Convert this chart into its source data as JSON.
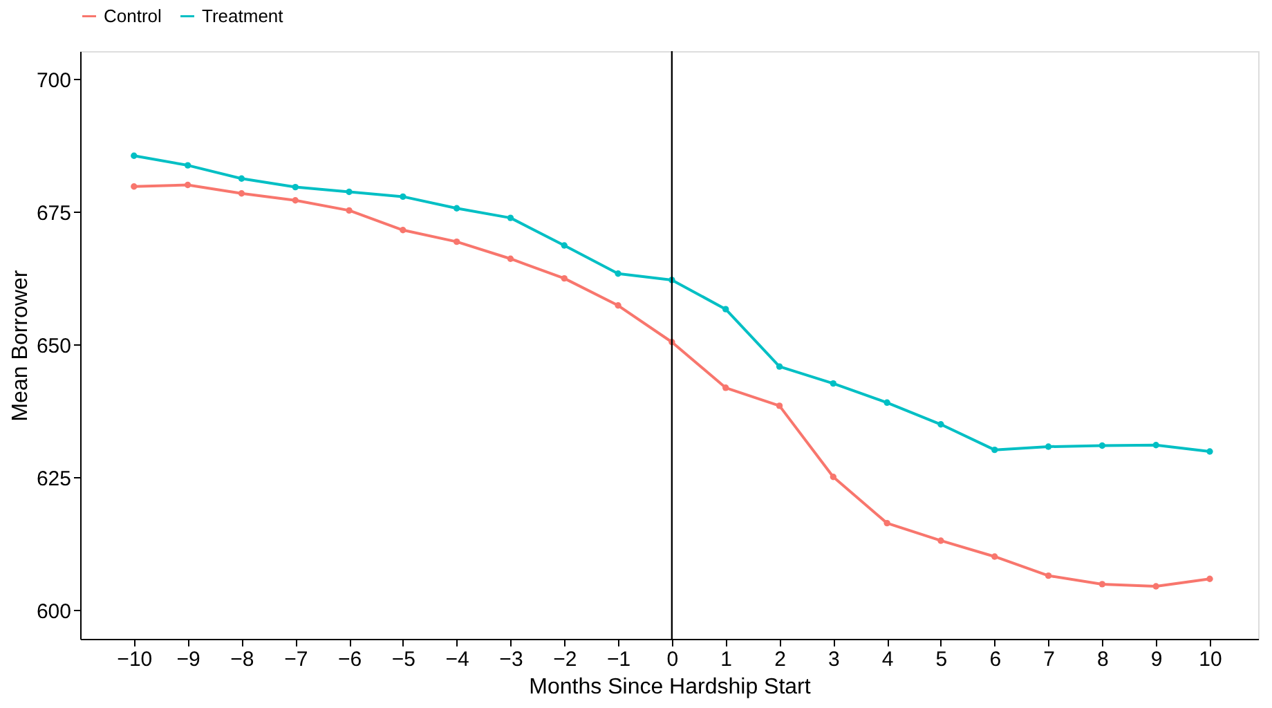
{
  "chart_data": {
    "type": "line",
    "xlabel": "Months Since Hardship Start",
    "ylabel": "Mean Borrower",
    "x": [
      -10,
      -9,
      -8,
      -7,
      -6,
      -5,
      -4,
      -3,
      -2,
      -1,
      0,
      1,
      2,
      3,
      4,
      5,
      6,
      7,
      8,
      9,
      10
    ],
    "series": [
      {
        "name": "Control",
        "color": "#f8766d",
        "values": [
          679.8,
          680.1,
          678.5,
          677.2,
          675.3,
          671.6,
          669.4,
          666.2,
          662.5,
          657.4,
          650.5,
          641.9,
          638.5,
          625.1,
          616.4,
          613.1,
          610.1,
          606.5,
          604.9,
          604.5,
          605.9
        ]
      },
      {
        "name": "Treatment",
        "color": "#00bfc4",
        "values": [
          685.6,
          683.8,
          681.3,
          679.7,
          678.8,
          677.9,
          675.7,
          673.9,
          668.7,
          663.4,
          662.2,
          656.7,
          645.9,
          642.7,
          639.1,
          635.0,
          630.2,
          630.8,
          631.0,
          631.1,
          629.9
        ]
      }
    ],
    "xlim": [
      -11,
      10.9
    ],
    "xticks": [
      -10,
      -9,
      -8,
      -7,
      -6,
      -5,
      -4,
      -3,
      -2,
      -1,
      0,
      1,
      2,
      3,
      4,
      5,
      6,
      7,
      8,
      9,
      10
    ],
    "ylim": [
      594.6,
      705.3
    ],
    "yticks": [
      600,
      625,
      650,
      675,
      700
    ],
    "ref_lines": [
      {
        "axis": "x",
        "value": 0,
        "color": "#000000"
      }
    ],
    "legend": "top",
    "grid": false,
    "marker": "circle",
    "line_style": "solid"
  }
}
